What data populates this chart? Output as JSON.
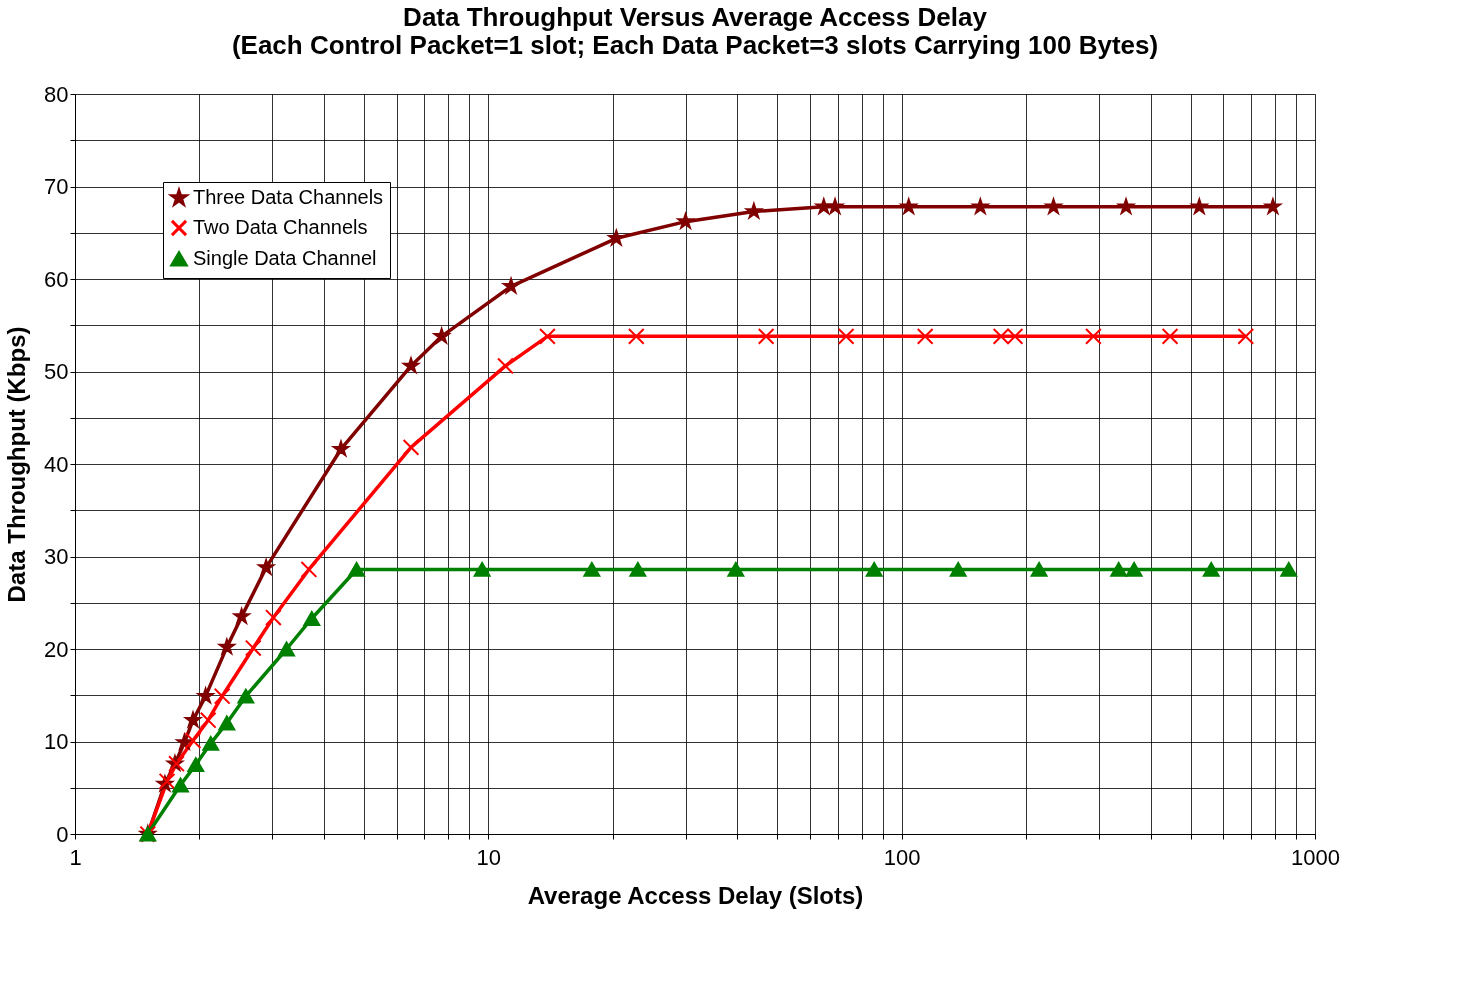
{
  "chart_data": {
    "type": "line",
    "title": "Data Throughput Versus Average Access Delay\n(Each Control Packet=1 slot; Each Data Packet=3 slots Carrying 100 Bytes)",
    "xlabel": "Average Access Delay (Slots)",
    "ylabel": "Data Throughput (Kbps)",
    "log": "x",
    "xlim": [
      1,
      1000
    ],
    "ylim": [
      0,
      80
    ],
    "xticks": [
      1,
      {
        "value": 2,
        "label": null
      },
      {
        "value": 3,
        "label": null
      },
      {
        "value": 4,
        "label": null
      },
      {
        "value": 5,
        "label": null
      },
      {
        "value": 6,
        "label": null
      },
      {
        "value": 7,
        "label": null
      },
      {
        "value": 8,
        "label": null
      },
      {
        "value": 9,
        "label": null
      },
      10,
      {
        "value": 20,
        "label": null
      },
      {
        "value": 30,
        "label": null
      },
      {
        "value": 40,
        "label": null
      },
      {
        "value": 50,
        "label": null
      },
      {
        "value": 60,
        "label": null
      },
      {
        "value": 70,
        "label": null
      },
      {
        "value": 80,
        "label": null
      },
      {
        "value": 90,
        "label": null
      },
      100,
      {
        "value": 200,
        "label": null
      },
      {
        "value": 300,
        "label": null
      },
      {
        "value": 400,
        "label": null
      },
      {
        "value": 500,
        "label": null
      },
      {
        "value": 600,
        "label": null
      },
      {
        "value": 700,
        "label": null
      },
      {
        "value": 800,
        "label": null
      },
      {
        "value": 900,
        "label": null
      },
      1000
    ],
    "yticks": [
      0,
      {
        "value": 5,
        "label": null
      },
      10,
      {
        "value": 15,
        "label": null
      },
      20,
      {
        "value": 25,
        "label": null
      },
      30,
      {
        "value": 35,
        "label": null
      },
      40,
      {
        "value": 45,
        "label": null
      },
      50,
      {
        "value": 55,
        "label": null
      },
      60,
      {
        "value": 65,
        "label": null
      },
      70,
      {
        "value": 75,
        "label": null
      },
      80
    ],
    "grid": true,
    "legend": "top left",
    "line_style": "solid",
    "series": [
      {
        "name": "Three Data Channels",
        "color": "#800000",
        "marker": "star",
        "x": [
          1.5,
          1.65,
          1.745,
          1.84,
          1.93,
          2.07,
          2.33,
          2.53,
          2.9,
          4.4,
          6.5,
          7.71,
          11.35,
          20.4,
          30.0,
          43.9,
          64.8,
          69.0,
          104,
          155,
          233,
          349,
          525,
          791
        ],
        "values": [
          0,
          5.4,
          7.6,
          9.9,
          12.3,
          14.9,
          20.2,
          23.5,
          28.8,
          41.6,
          50.6,
          53.8,
          59.2,
          64.4,
          66.2,
          67.3,
          67.8,
          67.8,
          67.8,
          67.8,
          67.8,
          67.8,
          67.8,
          67.8
        ]
      },
      {
        "name": "Two Data Channels",
        "color": "#ff0000",
        "marker": "cross",
        "x": [
          1.5,
          1.67,
          1.76,
          1.93,
          2.1,
          2.27,
          2.7,
          3.02,
          3.68,
          6.5,
          11.0,
          13.9,
          22.8,
          47.0,
          73.4,
          114,
          174,
          188,
          291,
          446,
          680
        ],
        "values": [
          0,
          5.7,
          7.6,
          10.1,
          12.3,
          14.9,
          20.1,
          23.4,
          28.6,
          41.8,
          50.6,
          53.8,
          53.8,
          53.8,
          53.8,
          53.8,
          53.8,
          53.8,
          53.8,
          53.8,
          53.8
        ]
      },
      {
        "name": "Single Data Channel",
        "color": "#008000",
        "marker": "triangle",
        "x": [
          1.5,
          1.8,
          1.96,
          2.13,
          2.33,
          2.59,
          3.25,
          3.74,
          4.8,
          9.66,
          17.8,
          23.0,
          39.7,
          85.8,
          137,
          215,
          335,
          365,
          561,
          864
        ],
        "values": [
          0,
          5.3,
          7.5,
          9.8,
          12.0,
          14.9,
          20.0,
          23.3,
          28.6,
          28.6,
          28.6,
          28.6,
          28.6,
          28.6,
          28.6,
          28.6,
          28.6,
          28.6,
          28.6,
          28.6
        ]
      }
    ]
  }
}
